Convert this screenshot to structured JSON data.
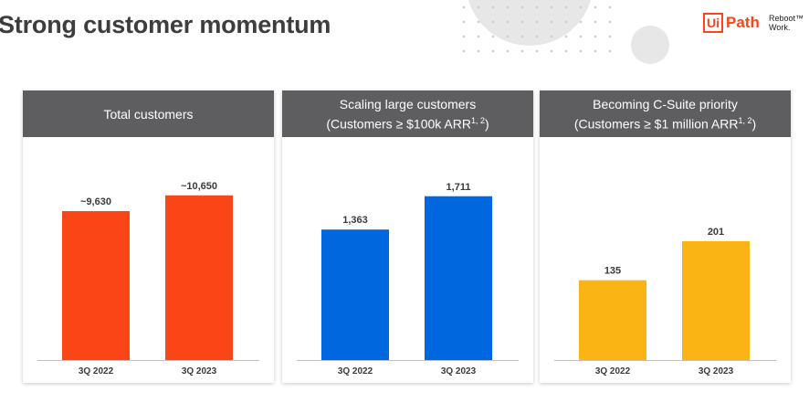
{
  "title": "Strong customer momentum",
  "logo": {
    "mark": "Ui",
    "name": "Path",
    "tagline": "Reboot™\nWork."
  },
  "colors": {
    "accent": "#fa4616",
    "header_bg": "#5e5e60"
  },
  "chart_data": [
    {
      "type": "bar",
      "title": "Total customers",
      "subtitle": "",
      "subtitle_sup": "",
      "categories": [
        "3Q 2022",
        "3Q 2023"
      ],
      "values": [
        9630,
        10650
      ],
      "value_labels": [
        "~9,630",
        "~10,650"
      ],
      "ylim": [
        0,
        13000
      ],
      "color": "#fa4616",
      "grid": false
    },
    {
      "type": "bar",
      "title": "Scaling large customers",
      "subtitle": "(Customers ≥ $100k ARR",
      "subtitle_sup": "1, 2",
      "categories": [
        "3Q 2022",
        "3Q 2023"
      ],
      "values": [
        1363,
        1711
      ],
      "value_labels": [
        "1,363",
        "1,711"
      ],
      "ylim": [
        0,
        2100
      ],
      "color": "#0067df",
      "grid": false
    },
    {
      "type": "bar",
      "title": "Becoming C-Suite priority",
      "subtitle": "(Customers ≥ $1 million ARR",
      "subtitle_sup": "1, 2",
      "categories": [
        "3Q 2022",
        "3Q 2023"
      ],
      "values": [
        135,
        201
      ],
      "value_labels": [
        "135",
        "201"
      ],
      "ylim": [
        0,
        340
      ],
      "color": "#fab413",
      "grid": false
    }
  ]
}
